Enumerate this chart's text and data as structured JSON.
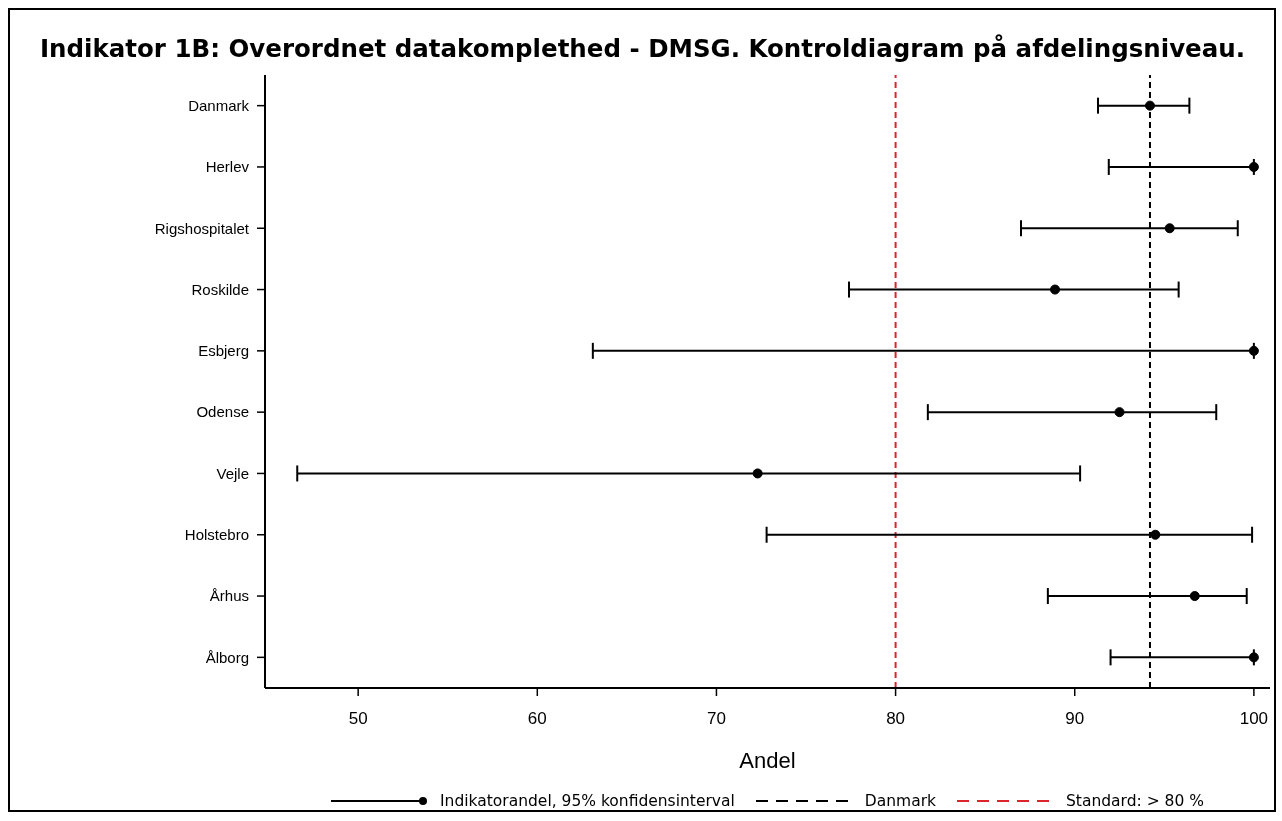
{
  "chart_data": {
    "type": "scatter",
    "title": "Indikator 1B: Overordnet datakomplethed - DMSG. Kontroldiagram på afdelingsniveau.",
    "xlabel": "Andel",
    "orientation": "horizontal",
    "categories": [
      "Danmark",
      "Herlev",
      "Rigshospitalet",
      "Roskilde",
      "Esbjerg",
      "Odense",
      "Vejle",
      "Holstebro",
      "Århus",
      "Ålborg"
    ],
    "series": [
      {
        "name": "Indikatorandel, 95% konfidensinterval",
        "color": "#000000",
        "values": [
          94.2,
          100,
          95.3,
          88.9,
          100,
          92.5,
          72.3,
          94.5,
          96.7,
          100
        ],
        "errors": [
          [
            91.3,
            96.4
          ],
          [
            91.9,
            100
          ],
          [
            87.0,
            99.1
          ],
          [
            77.4,
            95.8
          ],
          [
            63.1,
            100
          ],
          [
            81.8,
            97.9
          ],
          [
            46.6,
            90.3
          ],
          [
            72.8,
            99.9
          ],
          [
            88.5,
            99.6
          ],
          [
            92.0,
            100
          ]
        ]
      }
    ],
    "xlim": [
      44.8,
      100.9
    ],
    "xticks": [
      50,
      60,
      70,
      80,
      90,
      100
    ],
    "ref_lines": [
      {
        "axis": "x",
        "value": 94.2,
        "label": "Danmark",
        "color": "#000000",
        "line_style": "dashed"
      },
      {
        "axis": "x",
        "value": 80,
        "label": "Standard: > 80 %",
        "color": "#d9262b",
        "line_style": "dashed"
      }
    ],
    "legend": "bottom",
    "marker": "circle"
  }
}
